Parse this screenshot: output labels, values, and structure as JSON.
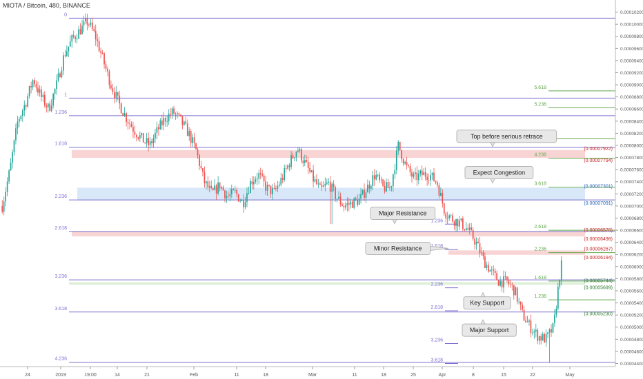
{
  "header": {
    "title": "MIOTA / Bitcoin, 480, BINANCE"
  },
  "chart_data": {
    "type": "candlestick",
    "title": "MIOTA / Bitcoin, 480, BINANCE",
    "x_ticks": [
      "24",
      "2019",
      "19:00",
      "14",
      "21",
      "Feb",
      "11",
      "18",
      "Mar",
      "11",
      "18",
      "25",
      "Apr",
      "8",
      "15",
      "22",
      "May"
    ],
    "y_ticks": [
      "0.00010400",
      "0.00010200",
      "0.00010000",
      "0.00009800",
      "0.00009600",
      "0.00009400",
      "0.00009200",
      "0.00009000",
      "0.00008800",
      "0.00008600",
      "0.00008400",
      "0.00008200",
      "0.00008000",
      "0.00007800",
      "0.00007600",
      "0.00007400",
      "0.00007200",
      "0.00007000",
      "0.00006800",
      "0.00006600",
      "0.00006400",
      "0.00006200",
      "0.00006000",
      "0.00005800",
      "0.00005600",
      "0.00005400",
      "0.00005200",
      "0.00005000",
      "0.00004800",
      "0.00004600",
      "0.00004400"
    ],
    "y_range": [
      4.36e-05,
      0.000104
    ],
    "colors": {
      "up": "#26a69a",
      "down": "#ef5350",
      "fib_main": "#7b6fd0",
      "fib_ext": "#5fa84a",
      "zone_red": "#f6c9c9",
      "zone_blue": "#cfe2f6"
    },
    "fib_main": [
      {
        "level": "0",
        "price": 0.000101
      },
      {
        "level": "1",
        "price": 8.78e-05
      },
      {
        "level": "1.236",
        "price": 8.49e-05
      },
      {
        "level": "1.618",
        "price": 7.97e-05
      },
      {
        "level": "2.236",
        "price": 7.1e-05
      },
      {
        "level": "2.618",
        "price": 6.58e-05
      },
      {
        "level": "3.236",
        "price": 5.78e-05
      },
      {
        "level": "3.618",
        "price": 5.25e-05
      },
      {
        "level": "4.236",
        "price": 4.42e-05
      }
    ],
    "fib_ext_right": [
      {
        "level": "5.618",
        "price": 8.9e-05
      },
      {
        "level": "5.236",
        "price": 8.62e-05
      },
      {
        "level": "4.618",
        "price": 8.11e-05
      },
      {
        "level": "4.236",
        "price": 7.79e-05
      },
      {
        "level": "3.618",
        "price": 7.31e-05
      },
      {
        "level": "2.618",
        "price": 6.6e-05
      },
      {
        "level": "2.236",
        "price": 6.23e-05
      },
      {
        "level": "1.618",
        "price": 5.76e-05
      },
      {
        "level": "1.236",
        "price": 5.45e-05
      }
    ],
    "fib_small": [
      {
        "level": "1.236",
        "price": 6.7e-05
      },
      {
        "level": "1.618",
        "price": 6.28e-05
      },
      {
        "level": "2.236",
        "price": 5.65e-05
      },
      {
        "level": "2.618",
        "price": 5.27e-05
      },
      {
        "level": "3.236",
        "price": 4.73e-05
      },
      {
        "level": "3.618",
        "price": 4.4e-05
      }
    ],
    "price_labels": [
      {
        "text": "(0.00007922)",
        "price": 7.922e-05,
        "color": "#c62828"
      },
      {
        "text": "(0.00007794)",
        "price": 7.794e-05,
        "color": "#c62828"
      },
      {
        "text": "(0.00007301)",
        "price": 7.301e-05,
        "color": "#1e5fb4"
      },
      {
        "text": "(0.00007091)",
        "price": 7.091e-05,
        "color": "#1e5fb4"
      },
      {
        "text": "(0.00006576)",
        "price": 6.576e-05,
        "color": "#c62828"
      },
      {
        "text": "(0.00006498)",
        "price": 6.498e-05,
        "color": "#c62828"
      },
      {
        "text": "(0.00006267)",
        "price": 6.267e-05,
        "color": "#c62828"
      },
      {
        "text": "(0.00006194)",
        "price": 6.194e-05,
        "color": "#c62828"
      },
      {
        "text": "(0.00005744)",
        "price": 5.744e-05,
        "color": "#2e7d32"
      },
      {
        "text": "(0.00005699)",
        "price": 5.699e-05,
        "color": "#2e7d32"
      },
      {
        "text": "(0.00005230)",
        "price": 5.23e-05,
        "color": "#2e7d32"
      }
    ],
    "zones": [
      {
        "from": 7.794e-05,
        "to": 7.922e-05,
        "color": "red"
      },
      {
        "from": 7.091e-05,
        "to": 7.301e-05,
        "color": "blue"
      },
      {
        "from": 6.498e-05,
        "to": 6.576e-05,
        "color": "red"
      },
      {
        "from": 6.194e-05,
        "to": 6.267e-05,
        "color": "red"
      },
      {
        "from": 5.699e-05,
        "to": 5.744e-05,
        "color": "green"
      }
    ],
    "annotations": [
      {
        "text": "Top before serious retrace",
        "price": 8.15e-05
      },
      {
        "text": "Expect Congestion",
        "price": 7.55e-05
      },
      {
        "text": "Major Resistance",
        "price": 6.88e-05
      },
      {
        "text": "Minor Resistance",
        "price": 6.3e-05
      },
      {
        "text": "Key Support",
        "price": 5.4e-05
      },
      {
        "text": "Major Support",
        "price": 4.95e-05
      }
    ],
    "price_path": [
      7e-05,
      7.6e-05,
      8.4e-05,
      8.7e-05,
      9.1e-05,
      8.8e-05,
      8.6e-05,
      9e-05,
      9.5e-05,
      9.75e-05,
      9.9e-05,
      0.0001005,
      9.8e-05,
      9.4e-05,
      9e-05,
      8.7e-05,
      8.45e-05,
      8.25e-05,
      8.1e-05,
      8e-05,
      8.25e-05,
      8.45e-05,
      8.55e-05,
      8.4e-05,
      8.2e-05,
      7.9e-05,
      7.4e-05,
      7.2e-05,
      7.35e-05,
      7.15e-05,
      7.22e-05,
      7.05e-05,
      7.4e-05,
      7.52e-05,
      7.3e-05,
      7.22e-05,
      7.45e-05,
      7.72e-05,
      7.95e-05,
      7.7e-05,
      7.45e-05,
      7.25e-05,
      7.38e-05,
      7.15e-05,
      7e-05,
      7.05e-05,
      7.1e-05,
      7.3e-05,
      7.52e-05,
      7.3e-05,
      7.3e-05,
      8e-05,
      7.65e-05,
      7.45e-05,
      7.52e-05,
      7.52e-05,
      7.38e-05,
      6.9e-05,
      6.78e-05,
      6.72e-05,
      6.6e-05,
      6.4e-05,
      6.1e-05,
      5.9e-05,
      5.75e-05,
      5.75e-05,
      5.6e-05,
      5.2e-05,
      5e-05,
      4.85e-05,
      4.8e-05,
      5e-05,
      6.1e-05
    ]
  }
}
